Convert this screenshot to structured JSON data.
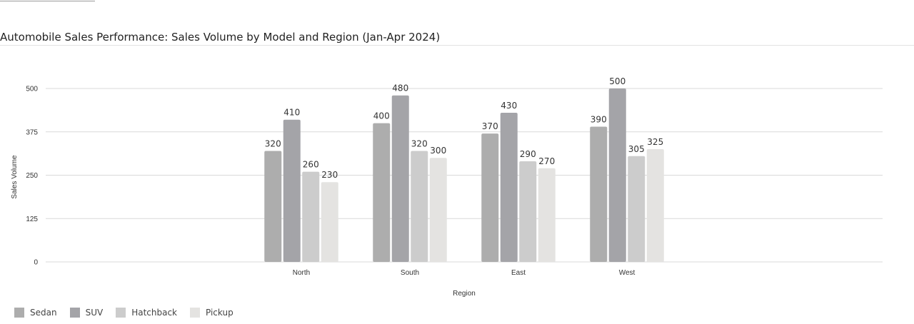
{
  "chart_data": {
    "type": "bar",
    "title": "Automobile Sales Performance: Sales Volume by Model and Region (Jan-Apr 2024)",
    "xlabel": "Region",
    "ylabel": "Sales Volume",
    "categories": [
      "North",
      "South",
      "East",
      "West"
    ],
    "ylim": [
      0,
      500
    ],
    "yticks": [
      0,
      125,
      250,
      375,
      500
    ],
    "grid": true,
    "legend_position": "bottom-left",
    "series": [
      {
        "name": "Sedan",
        "color": "#adadad",
        "values": [
          320,
          400,
          370,
          390
        ]
      },
      {
        "name": "SUV",
        "color": "#a4a4a8",
        "values": [
          410,
          480,
          430,
          500
        ]
      },
      {
        "name": "Hatchback",
        "color": "#cccccc",
        "values": [
          260,
          320,
          290,
          305
        ]
      },
      {
        "name": "Pickup",
        "color": "#e4e3e1",
        "values": [
          230,
          300,
          270,
          325
        ]
      }
    ]
  }
}
